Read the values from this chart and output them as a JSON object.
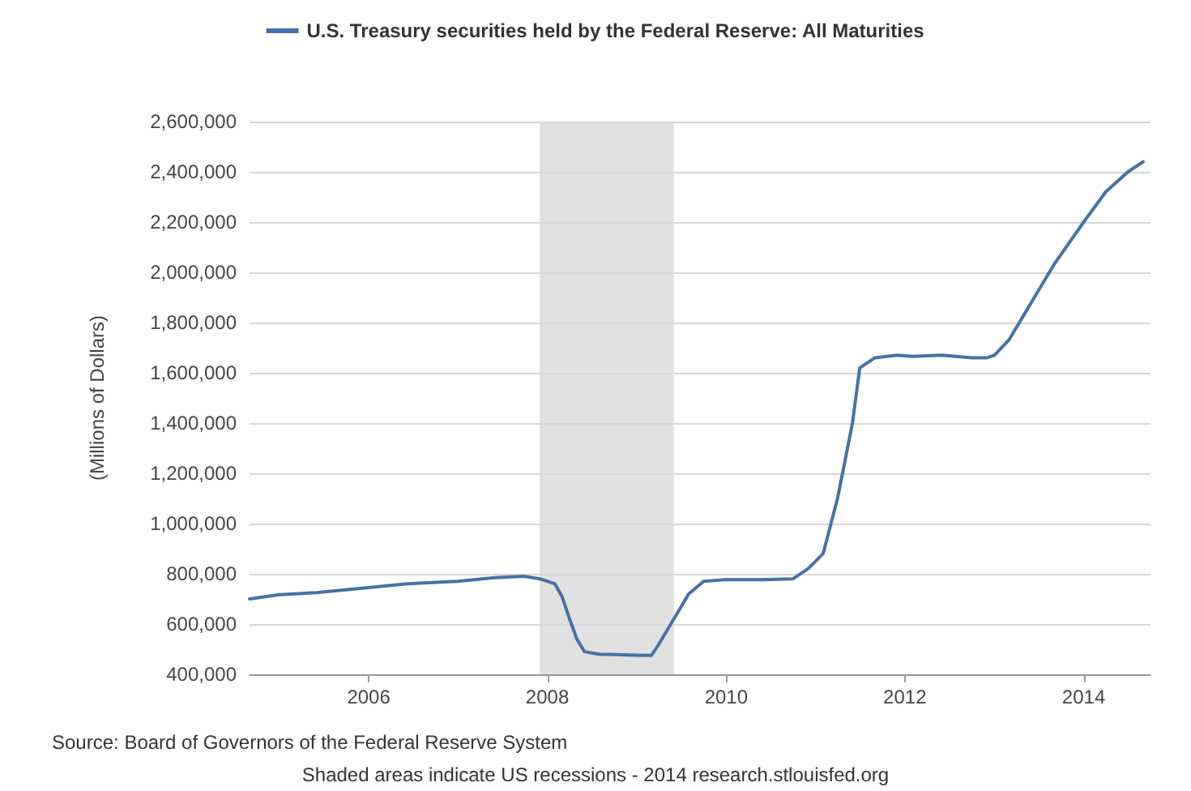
{
  "chart_data": {
    "type": "line",
    "ylabel": "(Millions of Dollars)",
    "xlim": [
      "2004-09",
      "2014-10"
    ],
    "xticks": [
      "2006",
      "2008",
      "2010",
      "2012",
      "2014"
    ],
    "ylim": [
      400000,
      2600000
    ],
    "yticks": [
      {
        "value": 400000,
        "label": "400,000"
      },
      {
        "value": 600000,
        "label": "600,000"
      },
      {
        "value": 800000,
        "label": "800,000"
      },
      {
        "value": 1000000,
        "label": "1,000,000"
      },
      {
        "value": 1200000,
        "label": "1,200,000"
      },
      {
        "value": 1400000,
        "label": "1,400,000"
      },
      {
        "value": 1600000,
        "label": "1,600,000"
      },
      {
        "value": 1800000,
        "label": "1,800,000"
      },
      {
        "value": 2000000,
        "label": "2,000,000"
      },
      {
        "value": 2200000,
        "label": "2,200,000"
      },
      {
        "value": 2400000,
        "label": "2,400,000"
      },
      {
        "value": 2600000,
        "label": "2,600,000"
      }
    ],
    "grid": "y",
    "legend": "top",
    "marker": "none",
    "line_style": "solid",
    "bands": [
      {
        "axis": "x",
        "from": "2007-12",
        "to": "2009-06",
        "color": "#e1e1e1"
      }
    ],
    "annotations": [
      "Source: Board of Governors of the Federal Reserve System",
      "Shaded areas indicate US recessions - 2014 research.stlouisfed.org"
    ],
    "series": [
      {
        "name": "U.S. Treasury securities held by the Federal Reserve: All Maturities",
        "color": "#4572a7",
        "x": [
          "2004-09",
          "2005-01",
          "2005-06",
          "2006-01",
          "2006-06",
          "2007-01",
          "2007-06",
          "2007-10",
          "2007-12",
          "2008-02",
          "2008-03",
          "2008-04",
          "2008-05",
          "2008-06",
          "2008-08",
          "2009-01",
          "2009-03",
          "2009-04",
          "2009-06",
          "2009-08",
          "2009-10",
          "2010-01",
          "2010-06",
          "2010-10",
          "2010-12",
          "2011-02",
          "2011-04",
          "2011-06",
          "2011-07",
          "2011-09",
          "2011-12",
          "2012-02",
          "2012-06",
          "2012-10",
          "2012-12",
          "2013-01",
          "2013-03",
          "2013-06",
          "2013-09",
          "2014-01",
          "2014-04",
          "2014-07",
          "2014-09"
        ],
        "values": [
          700000,
          717000,
          725000,
          745000,
          760000,
          770000,
          785000,
          790000,
          780000,
          760000,
          710000,
          620000,
          540000,
          490000,
          480000,
          476000,
          475000,
          520000,
          620000,
          720000,
          770000,
          777000,
          777000,
          780000,
          820000,
          880000,
          1100000,
          1400000,
          1620000,
          1660000,
          1670000,
          1665000,
          1670000,
          1660000,
          1660000,
          1670000,
          1730000,
          1880000,
          2030000,
          2200000,
          2320000,
          2400000,
          2440000
        ]
      }
    ]
  }
}
